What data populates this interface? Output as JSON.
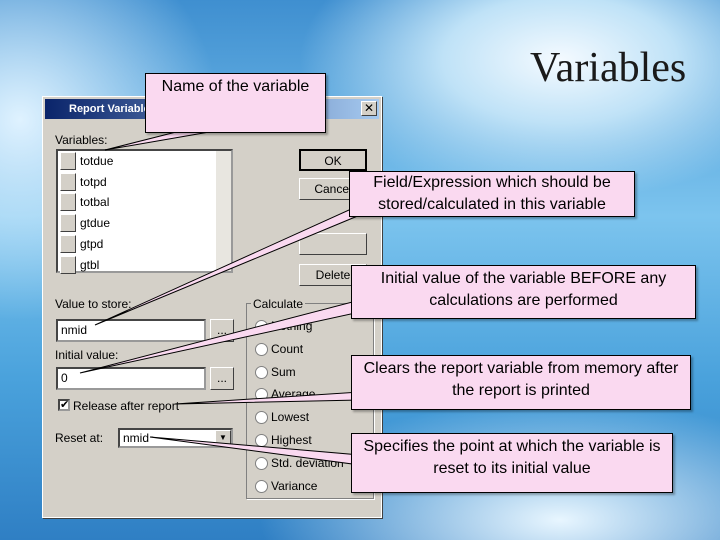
{
  "title": "Variables",
  "dialog": {
    "title": "Report Variables",
    "variables_label": "Variables:",
    "variables": [
      "totdue",
      "totpd",
      "totbal",
      "gtdue",
      "gtpd",
      "gtbl"
    ],
    "buttons": {
      "ok": "OK",
      "cancel": "Cancel",
      "delete": "Delete"
    },
    "value_to_store_label": "Value to store:",
    "value_to_store": "nmid",
    "initial_value_label": "Initial value:",
    "initial_value": "0",
    "browse": "...",
    "release_label": "Release after report",
    "reset_at_label": "Reset at:",
    "reset_at": "nmid",
    "calculate_label": "Calculate",
    "calculate_options": [
      "Nothing",
      "Count",
      "Sum",
      "Average",
      "Lowest",
      "Highest",
      "Std. deviation",
      "Variance"
    ]
  },
  "callouts": [
    "Name of the variable",
    "Field/Expression which should be stored/calculated in this variable",
    "Initial value of the variable BEFORE any calculations are performed",
    "Clears the report variable from memory after the report is printed",
    "Specifies the point at which the variable is reset to its initial value"
  ]
}
